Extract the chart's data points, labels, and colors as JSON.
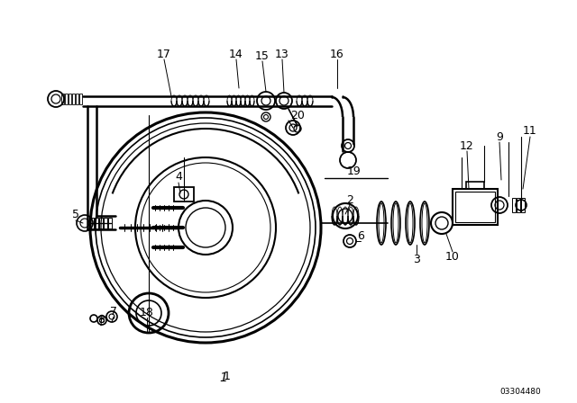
{
  "bg_color": "#ffffff",
  "line_color": "#000000",
  "fig_width": 6.4,
  "fig_height": 4.48,
  "dpi": 100,
  "part_number_text": "03304480",
  "diagram_number": "1"
}
